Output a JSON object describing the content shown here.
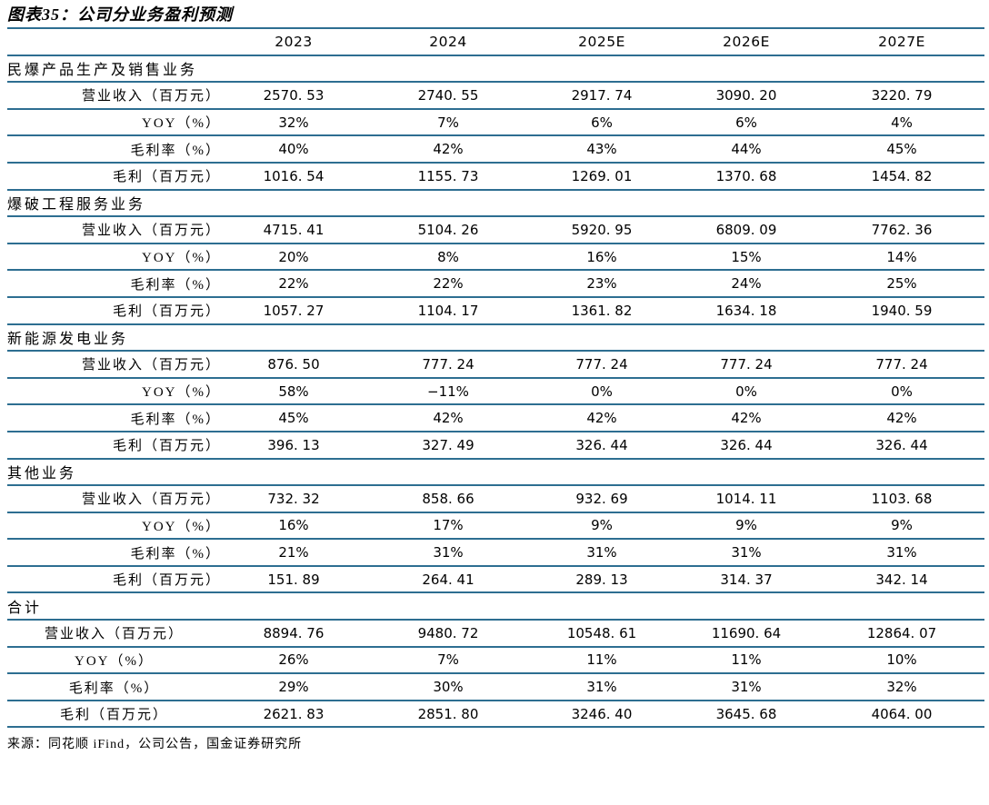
{
  "title": "图表35：公司分业务盈利预测",
  "source": "来源：同花顺 iFind，公司公告，国金证券研究所",
  "colors": {
    "line": "#2d6e91",
    "text": "#000000",
    "background": "#ffffff"
  },
  "chart_data": {
    "type": "table",
    "title": "图表35：公司分业务盈利预测",
    "columns": [
      "2023",
      "2024",
      "2025E",
      "2026E",
      "2027E"
    ],
    "sections": [
      {
        "name": "民爆产品生产及销售业务",
        "label_align": "right",
        "rows": [
          {
            "label": "营业收入（百万元）",
            "values": [
              "2570. 53",
              "2740. 55",
              "2917. 74",
              "3090. 20",
              "3220. 79"
            ]
          },
          {
            "label": "YOY（%）",
            "values": [
              "32%",
              "7%",
              "6%",
              "6%",
              "4%"
            ]
          },
          {
            "label": "毛利率（%）",
            "values": [
              "40%",
              "42%",
              "43%",
              "44%",
              "45%"
            ]
          },
          {
            "label": "毛利（百万元）",
            "values": [
              "1016. 54",
              "1155. 73",
              "1269. 01",
              "1370. 68",
              "1454. 82"
            ]
          }
        ]
      },
      {
        "name": "爆破工程服务业务",
        "label_align": "right",
        "rows": [
          {
            "label": "营业收入（百万元）",
            "values": [
              "4715. 41",
              "5104. 26",
              "5920. 95",
              "6809. 09",
              "7762. 36"
            ]
          },
          {
            "label": "YOY（%）",
            "values": [
              "20%",
              "8%",
              "16%",
              "15%",
              "14%"
            ]
          },
          {
            "label": "毛利率（%）",
            "values": [
              "22%",
              "22%",
              "23%",
              "24%",
              "25%"
            ]
          },
          {
            "label": "毛利（百万元）",
            "values": [
              "1057. 27",
              "1104. 17",
              "1361. 82",
              "1634. 18",
              "1940. 59"
            ]
          }
        ]
      },
      {
        "name": "新能源发电业务",
        "label_align": "right",
        "rows": [
          {
            "label": "营业收入（百万元）",
            "values": [
              "876. 50",
              "777. 24",
              "777. 24",
              "777. 24",
              "777. 24"
            ]
          },
          {
            "label": "YOY（%）",
            "values": [
              "58%",
              "−11%",
              "0%",
              "0%",
              "0%"
            ]
          },
          {
            "label": "毛利率（%）",
            "values": [
              "45%",
              "42%",
              "42%",
              "42%",
              "42%"
            ]
          },
          {
            "label": "毛利（百万元）",
            "values": [
              "396. 13",
              "327. 49",
              "326. 44",
              "326. 44",
              "326. 44"
            ]
          }
        ]
      },
      {
        "name": "其他业务",
        "label_align": "right",
        "rows": [
          {
            "label": "营业收入（百万元）",
            "values": [
              "732. 32",
              "858. 66",
              "932. 69",
              "1014. 11",
              "1103. 68"
            ]
          },
          {
            "label": "YOY（%）",
            "values": [
              "16%",
              "17%",
              "9%",
              "9%",
              "9%"
            ]
          },
          {
            "label": "毛利率（%）",
            "values": [
              "21%",
              "31%",
              "31%",
              "31%",
              "31%"
            ]
          },
          {
            "label": "毛利（百万元）",
            "values": [
              "151. 89",
              "264. 41",
              "289. 13",
              "314. 37",
              "342. 14"
            ]
          }
        ]
      },
      {
        "name": "合计",
        "label_align": "center",
        "rows": [
          {
            "label": "营业收入（百万元）",
            "values": [
              "8894. 76",
              "9480. 72",
              "10548. 61",
              "11690. 64",
              "12864. 07"
            ]
          },
          {
            "label": "YOY（%）",
            "values": [
              "26%",
              "7%",
              "11%",
              "11%",
              "10%"
            ]
          },
          {
            "label": "毛利率（%）",
            "values": [
              "29%",
              "30%",
              "31%",
              "31%",
              "32%"
            ]
          },
          {
            "label": "毛利（百万元）",
            "values": [
              "2621. 83",
              "2851. 80",
              "3246. 40",
              "3645. 68",
              "4064. 00"
            ]
          }
        ]
      }
    ]
  }
}
